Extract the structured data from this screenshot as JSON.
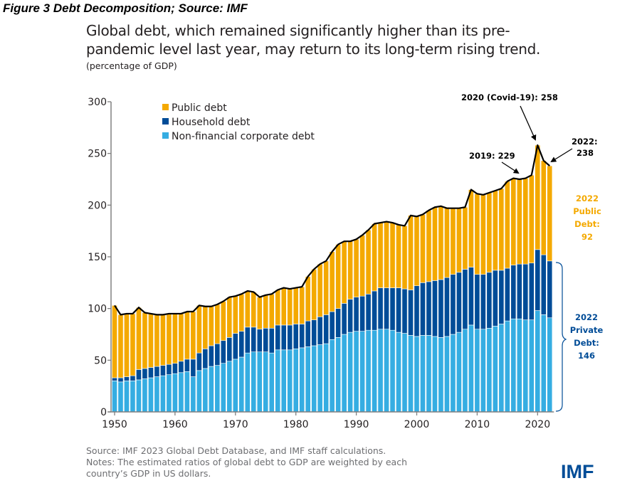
{
  "figure_caption": "Figure 3 Debt Decomposition; Source: IMF",
  "footer": {
    "source": "Source: IMF 2023 Global Debt Database, and IMF staff calculations.",
    "notes_line1": "Notes: The estimated ratios of global debt to GDP are weighted by each",
    "notes_line2": "country’s GDP in US dollars."
  },
  "logo": "IMF",
  "colors": {
    "public": "#f4a900",
    "household": "#004c97",
    "corporate": "#35ade2",
    "total_line": "#000000",
    "public_annotation": "#f4a900",
    "private_annotation": "#004c97",
    "axis": "#808080"
  },
  "chart_data": {
    "type": "bar",
    "stacked": true,
    "title_line1": "Global debt, which remained significantly higher than its pre-",
    "title_line2": "pandemic level last year, may return to its long-term rising trend.",
    "subtitle": "(percentage of GDP)",
    "xlabel": "",
    "ylabel": "",
    "ylim": [
      0,
      300
    ],
    "yticks": [
      0,
      50,
      100,
      150,
      200,
      250,
      300
    ],
    "ytick_labels": [
      "0",
      "50",
      "100",
      "150",
      "200",
      "250",
      "300"
    ],
    "xticks": [
      1950,
      1960,
      1970,
      1980,
      1990,
      2000,
      2010,
      2020
    ],
    "xtick_labels": [
      "1950",
      "1960",
      "1970",
      "1980",
      "1990",
      "2000",
      "2010",
      "2020"
    ],
    "grid": false,
    "legend_position": "top-left",
    "x": [
      1950,
      1951,
      1952,
      1953,
      1954,
      1955,
      1956,
      1957,
      1958,
      1959,
      1960,
      1961,
      1962,
      1963,
      1964,
      1965,
      1966,
      1967,
      1968,
      1969,
      1970,
      1971,
      1972,
      1973,
      1974,
      1975,
      1976,
      1977,
      1978,
      1979,
      1980,
      1981,
      1982,
      1983,
      1984,
      1985,
      1986,
      1987,
      1988,
      1989,
      1990,
      1991,
      1992,
      1993,
      1994,
      1995,
      1996,
      1997,
      1998,
      1999,
      2000,
      2001,
      2002,
      2003,
      2004,
      2005,
      2006,
      2007,
      2008,
      2009,
      2010,
      2011,
      2012,
      2013,
      2014,
      2015,
      2016,
      2017,
      2018,
      2019,
      2020,
      2021,
      2022
    ],
    "series": [
      {
        "name": "Non-financial corporate debt",
        "key": "corporate",
        "values": [
          30,
          29,
          30,
          30,
          31,
          32,
          33,
          34,
          35,
          36,
          37,
          38,
          39,
          34,
          40,
          42,
          44,
          45,
          47,
          49,
          51,
          53,
          57,
          58,
          58,
          58,
          57,
          60,
          60,
          60,
          61,
          62,
          63,
          64,
          65,
          66,
          70,
          72,
          75,
          77,
          78,
          78,
          79,
          79,
          80,
          80,
          79,
          77,
          76,
          74,
          73,
          74,
          74,
          73,
          72,
          73,
          75,
          77,
          80,
          84,
          80,
          80,
          81,
          83,
          85,
          88,
          90,
          90,
          89,
          89,
          98,
          94,
          91
        ]
      },
      {
        "name": "Household debt",
        "key": "household",
        "values": [
          3,
          4,
          4,
          5,
          10,
          10,
          10,
          10,
          10,
          10,
          10,
          11,
          12,
          17,
          17,
          19,
          20,
          21,
          22,
          23,
          25,
          25,
          25,
          24,
          22,
          23,
          24,
          24,
          24,
          24,
          24,
          23,
          25,
          25,
          27,
          28,
          27,
          28,
          30,
          32,
          33,
          34,
          35,
          38,
          40,
          40,
          41,
          43,
          43,
          44,
          49,
          51,
          52,
          54,
          56,
          57,
          58,
          58,
          58,
          56,
          53,
          53,
          54,
          54,
          52,
          51,
          52,
          53,
          54,
          55,
          59,
          58,
          55
        ]
      },
      {
        "name": "Public debt",
        "key": "public",
        "values": [
          70,
          61,
          61,
          60,
          60,
          54,
          52,
          50,
          49,
          49,
          48,
          46,
          46,
          46,
          46,
          41,
          38,
          38,
          38,
          39,
          36,
          36,
          35,
          34,
          31,
          32,
          33,
          34,
          36,
          35,
          35,
          36,
          43,
          49,
          51,
          52,
          58,
          62,
          60,
          56,
          56,
          59,
          62,
          65,
          63,
          64,
          63,
          61,
          61,
          72,
          67,
          66,
          69,
          71,
          71,
          68,
          64,
          62,
          60,
          75,
          78,
          77,
          77,
          77,
          79,
          84,
          84,
          82,
          83,
          85,
          101,
          91,
          92
        ]
      }
    ],
    "total_line": {
      "name": "Total debt",
      "values": [
        103,
        94,
        95,
        95,
        101,
        96,
        95,
        94,
        94,
        95,
        95,
        95,
        97,
        97,
        103,
        102,
        102,
        104,
        107,
        111,
        112,
        114,
        117,
        116,
        111,
        113,
        114,
        118,
        120,
        119,
        120,
        121,
        131,
        138,
        143,
        146,
        155,
        162,
        165,
        165,
        167,
        171,
        176,
        182,
        183,
        184,
        183,
        181,
        180,
        190,
        189,
        191,
        195,
        198,
        199,
        197,
        197,
        197,
        198,
        215,
        211,
        210,
        212,
        214,
        216,
        223,
        226,
        225,
        226,
        229,
        258,
        243,
        238
      ]
    },
    "annotations": [
      {
        "text": "2020 (Covid-19): 258",
        "x": 2020,
        "y": 258
      },
      {
        "text_line1": "2022:",
        "text_line2": "238",
        "x": 2022,
        "y": 238
      },
      {
        "text": "2019: 229",
        "x": 2019,
        "y": 229
      },
      {
        "lines": [
          "2022",
          "Public",
          "Debt:",
          "92"
        ],
        "color_key": "public"
      },
      {
        "lines": [
          "2022",
          "Private",
          "Debt:",
          "146"
        ],
        "color_key": "household"
      }
    ]
  }
}
